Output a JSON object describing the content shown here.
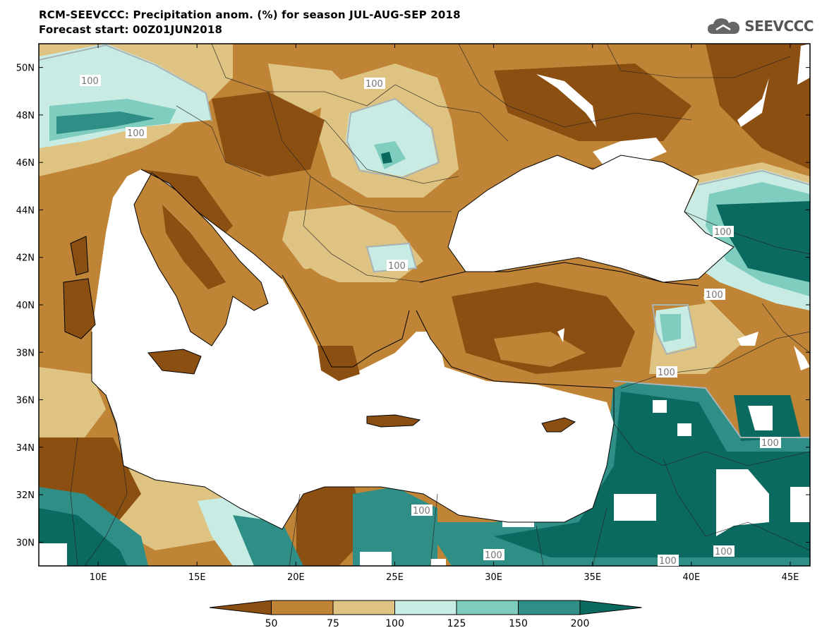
{
  "title": {
    "line1": "RCM-SEEVCCC: Precipitation anom. (%) for season JUL-AUG-SEP 2018",
    "line2": "Forecast start: 00Z01JUN2018"
  },
  "logo": {
    "text": "SEEVCCC",
    "icon": "cloud-icon"
  },
  "map": {
    "lat_labels": [
      "50N",
      "48N",
      "46N",
      "44N",
      "42N",
      "40N",
      "38N",
      "36N",
      "34N",
      "32N",
      "30N"
    ],
    "lat_values": [
      50,
      48,
      46,
      44,
      42,
      40,
      38,
      36,
      34,
      32,
      30
    ],
    "lon_labels": [
      "10E",
      "15E",
      "20E",
      "25E",
      "30E",
      "35E",
      "40E",
      "45E"
    ],
    "lon_values": [
      10,
      15,
      20,
      25,
      30,
      35,
      40,
      45
    ],
    "lon_range": [
      7,
      46
    ],
    "lat_range": [
      29,
      51
    ],
    "contour_labels": [
      "100",
      "100",
      "100",
      "100",
      "100",
      "100",
      "100",
      "100",
      "100",
      "100",
      "100",
      "100"
    ]
  },
  "colorbar": {
    "levels": [
      "50",
      "75",
      "100",
      "125",
      "150",
      "200"
    ],
    "colors": [
      "#8c4f12",
      "#bf8436",
      "#dfc383",
      "#c8ece4",
      "#7fcdbf",
      "#2f8f86",
      "#0b6a60"
    ]
  }
}
